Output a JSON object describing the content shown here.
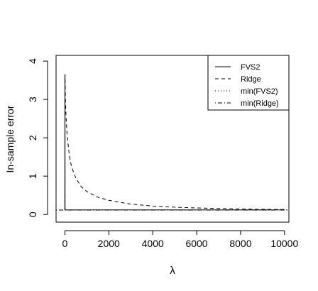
{
  "chart_data": {
    "type": "line",
    "xlabel": "λ",
    "ylabel": "In-sample error",
    "xlim": [
      -400,
      10200
    ],
    "ylim": [
      -0.2,
      4.15
    ],
    "x_ticks": [
      0,
      2000,
      4000,
      6000,
      8000,
      10000
    ],
    "x_tick_labels": [
      "0",
      "2000",
      "4000",
      "6000",
      "8000",
      "10000"
    ],
    "y_ticks": [
      0,
      1,
      2,
      3,
      4
    ],
    "y_tick_labels": [
      "0",
      "1",
      "2",
      "3",
      "4"
    ],
    "grid": false,
    "legend": {
      "placement": "top-right",
      "entries": [
        {
          "label": "FVS2",
          "linestyle": "solid"
        },
        {
          "label": "Ridge",
          "linestyle": "dashed"
        },
        {
          "label": "min(FVS2)",
          "linestyle": "dotted"
        },
        {
          "label": "min(Ridge)",
          "linestyle": "dotdash"
        }
      ]
    },
    "series": [
      {
        "name": "FVS2",
        "linestyle": "solid",
        "x": [
          0,
          1,
          5,
          10,
          30,
          50,
          100,
          500,
          1000,
          2000,
          5000,
          10000
        ],
        "y": [
          0.12,
          3.65,
          3.65,
          0.12,
          0.12,
          0.12,
          0.12,
          0.12,
          0.12,
          0.12,
          0.12,
          0.12
        ]
      },
      {
        "name": "Ridge",
        "linestyle": "dashed",
        "x": [
          0,
          10,
          25,
          50,
          100,
          200,
          300,
          500,
          750,
          1000,
          1500,
          2000,
          3000,
          4000,
          5000,
          6000,
          7000,
          8000,
          9000,
          10000
        ],
        "y": [
          0.12,
          3.65,
          3.0,
          2.6,
          2.1,
          1.55,
          1.25,
          0.95,
          0.72,
          0.6,
          0.45,
          0.37,
          0.27,
          0.22,
          0.19,
          0.17,
          0.155,
          0.145,
          0.135,
          0.13
        ]
      },
      {
        "name": "min(FVS2)",
        "linestyle": "dotted",
        "x": [
          -400,
          10200
        ],
        "y": [
          0.12,
          0.12
        ]
      },
      {
        "name": "min(Ridge)",
        "linestyle": "dotdash",
        "x": [
          -400,
          10200
        ],
        "y": [
          0.115,
          0.115
        ]
      }
    ]
  }
}
